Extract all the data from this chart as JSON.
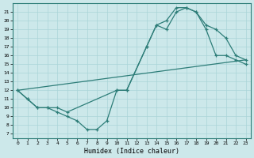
{
  "xlabel": "Humidex (Indice chaleur)",
  "bg_color": "#cce8ea",
  "line_color": "#2d7d78",
  "grid_color": "#aad4d8",
  "xlim": [
    -0.5,
    23.5
  ],
  "ylim": [
    6.5,
    22
  ],
  "xticks": [
    0,
    1,
    2,
    3,
    4,
    5,
    6,
    7,
    8,
    9,
    10,
    11,
    12,
    13,
    14,
    15,
    16,
    17,
    18,
    19,
    20,
    21,
    22,
    23
  ],
  "yticks": [
    7,
    8,
    9,
    10,
    11,
    12,
    13,
    14,
    15,
    16,
    17,
    18,
    19,
    20,
    21
  ],
  "line1_x": [
    0,
    1,
    2,
    3,
    4,
    5,
    6,
    7,
    8,
    9,
    10,
    11,
    13,
    14,
    15,
    16,
    17,
    18,
    19,
    20,
    21,
    22,
    23
  ],
  "line1_y": [
    12,
    11,
    10,
    10,
    9.5,
    9,
    8.5,
    7.5,
    7.5,
    8.5,
    12,
    12,
    17,
    19.5,
    19,
    21,
    21.5,
    21,
    19,
    16,
    16,
    15.5,
    15
  ],
  "line2_x": [
    0,
    1,
    2,
    3,
    4,
    5,
    10,
    11,
    13,
    14,
    15,
    16,
    17,
    18,
    19,
    20,
    21,
    22,
    23
  ],
  "line2_y": [
    12,
    11,
    10,
    10,
    10,
    9.5,
    12,
    12,
    17,
    19.5,
    20,
    21.5,
    21.5,
    21,
    19.5,
    19,
    18,
    16,
    15.5
  ],
  "line3_x": [
    0,
    23
  ],
  "line3_y": [
    12,
    15.5
  ]
}
